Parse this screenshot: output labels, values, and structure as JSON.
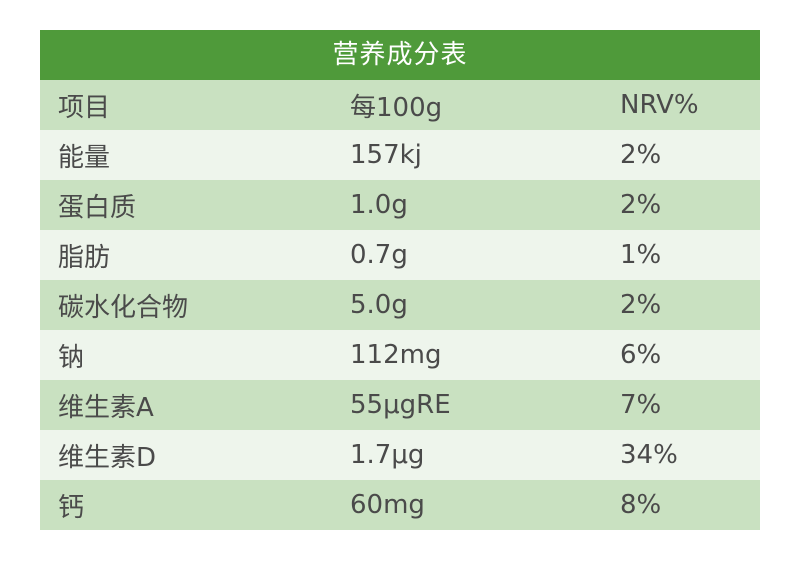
{
  "table": {
    "title": "营养成分表",
    "headers": [
      "项目",
      "每100g",
      "NRV%"
    ],
    "rows": [
      [
        "能量",
        "157kj",
        "2%"
      ],
      [
        "蛋白质",
        "1.0g",
        "2%"
      ],
      [
        "脂肪",
        "0.7g",
        "1%"
      ],
      [
        "碳水化合物",
        "5.0g",
        "2%"
      ],
      [
        "钠",
        "112mg",
        "6%"
      ],
      [
        "维生素A",
        "55μgRE",
        "7%"
      ],
      [
        "维生素D",
        "1.7μg",
        "34%"
      ],
      [
        "钙",
        "60mg",
        "8%"
      ]
    ]
  },
  "colors": {
    "title_bg": "#4f9a3a",
    "row_dark": "#c9e1c1",
    "row_light": "#eef5ec",
    "text": "#4a4a4a"
  }
}
